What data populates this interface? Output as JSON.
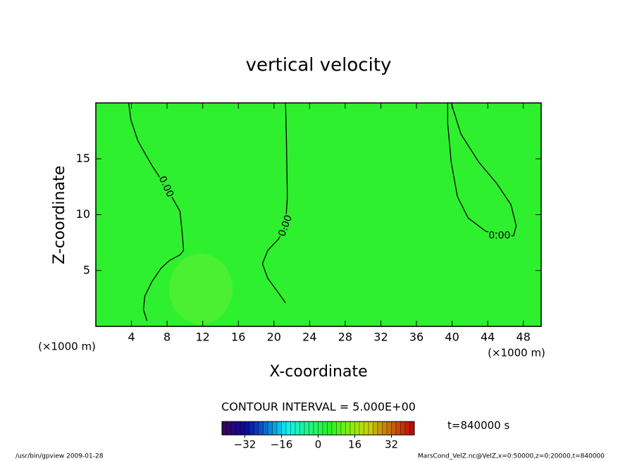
{
  "chart_data": {
    "type": "contour",
    "title": "vertical velocity",
    "xlabel": "X-coordinate",
    "ylabel": "Z-coordinate",
    "x_unit_label": "(×1000 m)",
    "xlim": [
      0,
      50
    ],
    "ylim": [
      0,
      20
    ],
    "xticks": [
      4,
      8,
      12,
      16,
      20,
      24,
      28,
      32,
      36,
      40,
      44,
      48
    ],
    "yticks": [
      5,
      10,
      15
    ],
    "fill_color": "#2ef02e",
    "line_color": "#000000",
    "contours": [
      {
        "level": 0,
        "label": "0.00",
        "x": [
          3.69,
          3.93,
          4.72,
          6.3,
          7.88,
          9.45,
          9.69,
          9.85,
          9.45,
          8.27,
          7.32,
          6.3,
          5.5,
          5.35,
          5.74
        ],
        "y": [
          20,
          18.5,
          16.6,
          14.4,
          12.5,
          10.3,
          8.4,
          6.8,
          6.4,
          5.9,
          5.2,
          4.0,
          2.7,
          1.5,
          0.5
        ]
      },
      {
        "level": 0,
        "label": "0.00",
        "x": [
          21.3,
          21.4,
          21.5,
          21.3,
          20.5,
          19.3,
          18.7,
          19.3,
          20.5,
          21.3
        ],
        "y": [
          20,
          16.6,
          11.6,
          9.0,
          7.8,
          6.8,
          5.6,
          4.3,
          3.0,
          2.1
        ]
      },
      {
        "level": 0,
        "label": "0.00",
        "x": [
          39.9,
          41.0,
          43.0,
          45.0,
          46.6,
          47.2,
          46.9,
          43.8,
          41.8,
          40.6,
          39.9,
          39.5,
          39.5
        ],
        "y": [
          20,
          17.2,
          14.7,
          12.8,
          10.9,
          9.0,
          8.1,
          8.5,
          9.7,
          11.6,
          14.7,
          18.2,
          20
        ]
      }
    ],
    "contour_interval_text": "CONTOUR INTERVAL = 5.000E+00",
    "time_text": "t=840000 s",
    "clim": [
      -42,
      42
    ],
    "colorbar_ticks": [
      {
        "value": -32,
        "label": "−32"
      },
      {
        "value": -16,
        "label": "−16"
      },
      0,
      16,
      32
    ],
    "footer_left": "/usr/bin/gpview  2009-01-28",
    "footer_right": "MarsCond_VelZ.nc@VelZ,x=0:50000,z=0:20000,t=840000"
  }
}
